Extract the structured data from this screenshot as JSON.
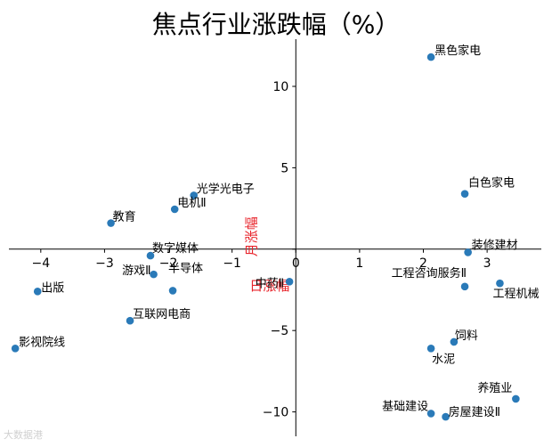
{
  "watermark": "大数据港",
  "chart_data": {
    "type": "scatter",
    "title": "焦点行业涨跌幅（%）",
    "xlabel": "日涨幅",
    "ylabel": "月涨幅",
    "xlim": [
      -4.5,
      3.85
    ],
    "ylim": [
      -11.5,
      12.9
    ],
    "xticks": [
      -4,
      -3,
      -2,
      -1,
      0,
      1,
      2,
      3
    ],
    "yticks": [
      -10,
      -5,
      0,
      5,
      10
    ],
    "colors": {
      "point": "#2a7ab8",
      "axis_label": "#e8242b",
      "axis": "#000000"
    },
    "points": [
      {
        "label": "黑色家电",
        "x": 2.12,
        "y": 11.8
      },
      {
        "label": "白色家电",
        "x": 2.65,
        "y": 3.4
      },
      {
        "label": "装修建材",
        "x": 2.7,
        "y": -0.2
      },
      {
        "label": "工程咨询服务Ⅱ",
        "x": 2.65,
        "y": -2.3
      },
      {
        "label": "工程机械",
        "x": 3.2,
        "y": -2.1
      },
      {
        "label": "饲料",
        "x": 2.48,
        "y": -5.7
      },
      {
        "label": "水泥",
        "x": 2.12,
        "y": -6.1
      },
      {
        "label": "养殖业",
        "x": 3.45,
        "y": -9.2
      },
      {
        "label": "基础建设",
        "x": 2.12,
        "y": -10.1
      },
      {
        "label": "房屋建设Ⅱ",
        "x": 2.35,
        "y": -10.3
      },
      {
        "label": "光学光电子",
        "x": -1.6,
        "y": 3.3
      },
      {
        "label": "电机Ⅱ",
        "x": -1.9,
        "y": 2.45
      },
      {
        "label": "教育",
        "x": -2.9,
        "y": 1.6
      },
      {
        "label": "数字媒体",
        "x": -2.28,
        "y": -0.4
      },
      {
        "label": "游戏Ⅱ",
        "x": -2.23,
        "y": -1.55
      },
      {
        "label": "半导体",
        "x": -1.93,
        "y": -2.55
      },
      {
        "label": "中药Ⅱ",
        "x": -0.1,
        "y": -2.0
      },
      {
        "label": "出版",
        "x": -4.05,
        "y": -2.6
      },
      {
        "label": "互联网电商",
        "x": -2.6,
        "y": -4.4
      },
      {
        "label": "影视院线",
        "x": -4.4,
        "y": -6.1
      }
    ]
  }
}
